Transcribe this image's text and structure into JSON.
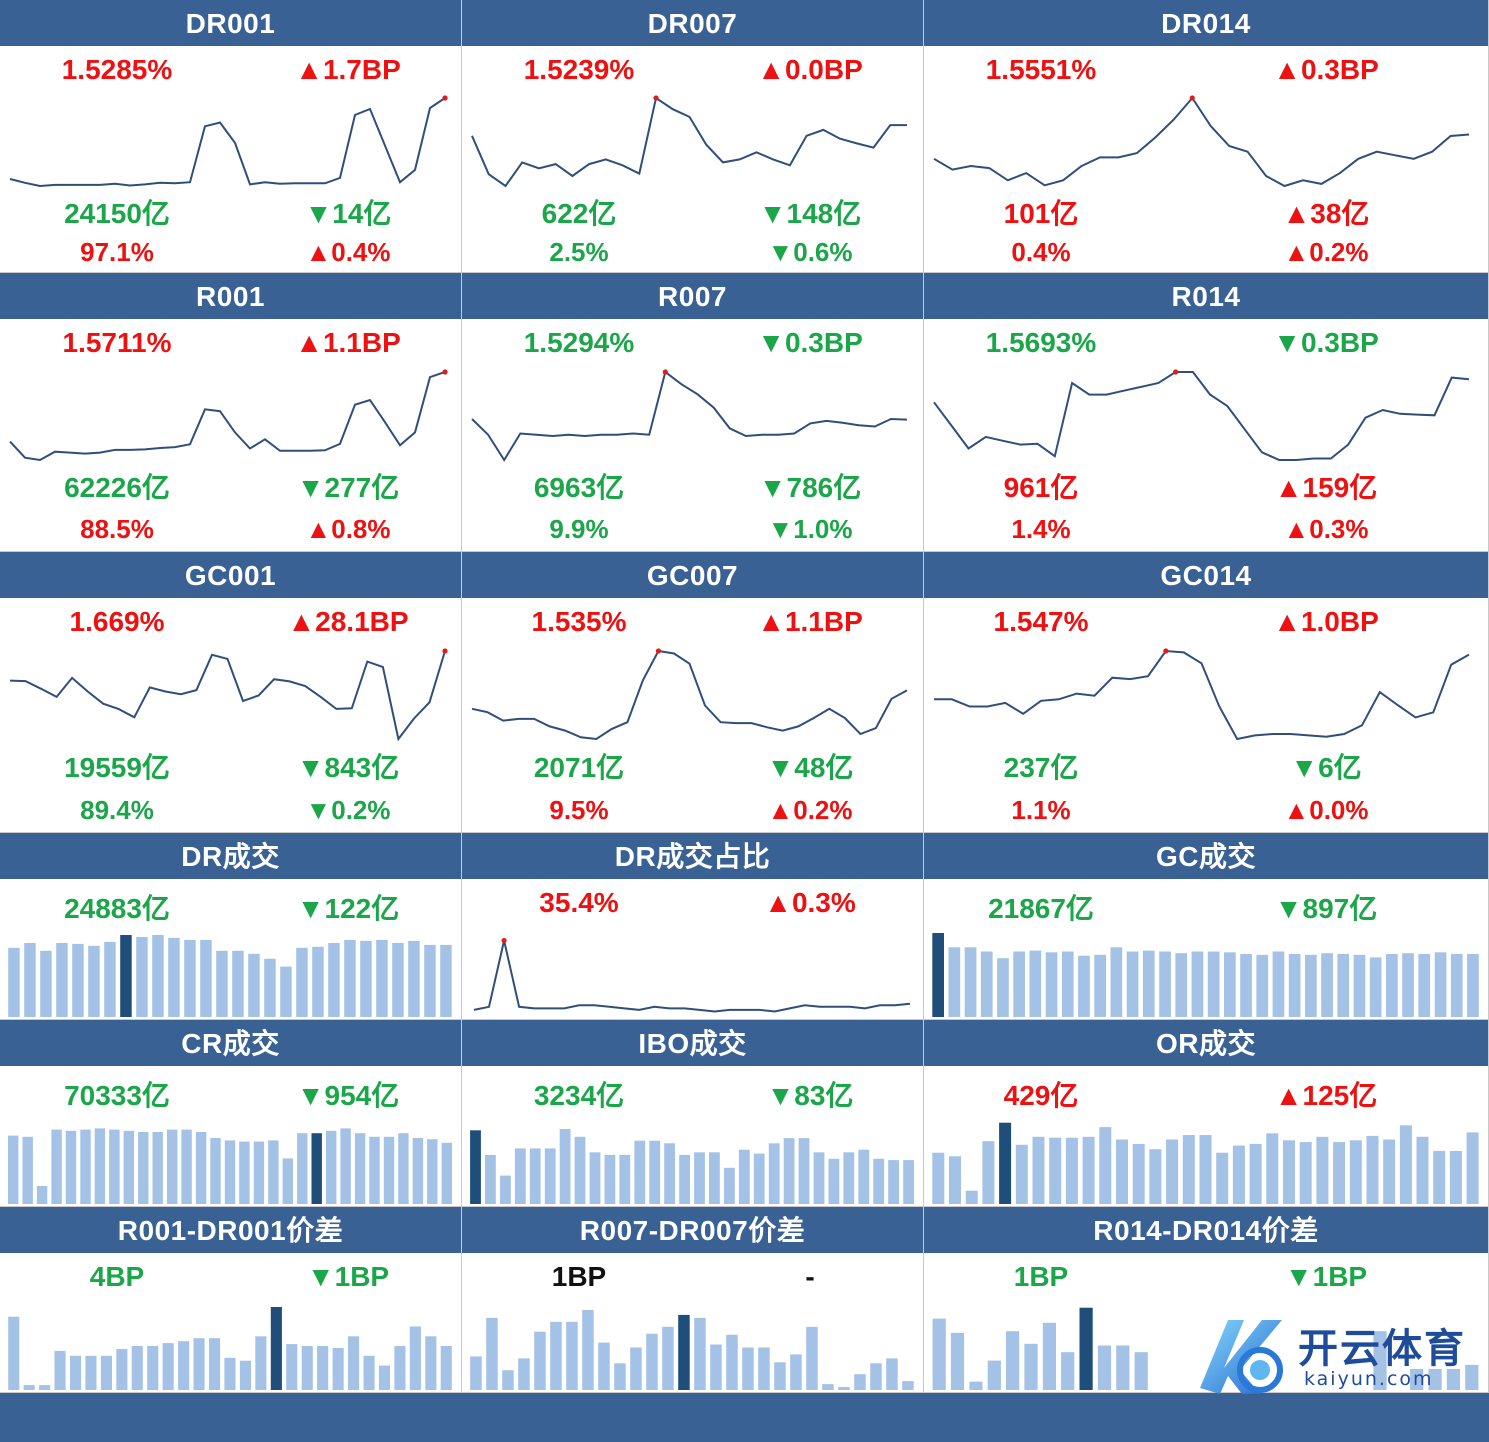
{
  "colors": {
    "header_bg": "#3a6194",
    "up": "#ee1111",
    "down": "#1ca64a",
    "line": "#2f4f7a",
    "bar": "#a4c2e6",
    "bar_highlight": "#1f4e7a"
  },
  "watermark": {
    "brand_cn": "开云体育",
    "url": "kaiyun.com"
  },
  "chart_data": [
    {
      "id": "DR001",
      "type": "line",
      "title": "DR001",
      "rate": {
        "text": "1.5285%",
        "dir": "up"
      },
      "rate_chg": {
        "text": "▲1.7BP",
        "dir": "up"
      },
      "vol": {
        "text": "24150亿",
        "dir": "down"
      },
      "vol_chg": {
        "text": "▼14亿",
        "dir": "down"
      },
      "share": {
        "text": "97.1%",
        "dir": "up"
      },
      "share_chg": {
        "text": "▲0.4%",
        "dir": "up"
      },
      "values": [
        1.378,
        1.371,
        1.365,
        1.367,
        1.367,
        1.367,
        1.367,
        1.369,
        1.366,
        1.368,
        1.371,
        1.37,
        1.372,
        1.476,
        1.483,
        1.445,
        1.368,
        1.372,
        1.369,
        1.37,
        1.37,
        1.37,
        1.38,
        1.497,
        1.508,
        1.44,
        1.372,
        1.395,
        1.51,
        1.5285
      ]
    },
    {
      "id": "DR007",
      "type": "line",
      "title": "DR007",
      "rate": {
        "text": "1.5239%",
        "dir": "up"
      },
      "rate_chg": {
        "text": "▲0.0BP",
        "dir": "up"
      },
      "vol": {
        "text": "622亿",
        "dir": "down"
      },
      "vol_chg": {
        "text": "▼148亿",
        "dir": "down"
      },
      "share": {
        "text": "2.5%",
        "dir": "down"
      },
      "share_chg": {
        "text": "▼0.6%",
        "dir": "down"
      },
      "values": [
        1.46,
        1.395,
        1.375,
        1.415,
        1.405,
        1.412,
        1.392,
        1.412,
        1.42,
        1.41,
        1.396,
        1.5239,
        1.505,
        1.492,
        1.445,
        1.415,
        1.42,
        1.432,
        1.42,
        1.41,
        1.46,
        1.47,
        1.455,
        1.447,
        1.44,
        1.478,
        1.478
      ]
    },
    {
      "id": "DR014",
      "type": "line",
      "title": "DR014",
      "rate": {
        "text": "1.5551%",
        "dir": "up"
      },
      "rate_chg": {
        "text": "▲0.3BP",
        "dir": "up"
      },
      "vol": {
        "text": "101亿",
        "dir": "up"
      },
      "vol_chg": {
        "text": "▲38亿",
        "dir": "up"
      },
      "share": {
        "text": "0.4%",
        "dir": "up"
      },
      "share_chg": {
        "text": "▲0.2%",
        "dir": "up"
      },
      "values": [
        1.47,
        1.455,
        1.46,
        1.457,
        1.44,
        1.45,
        1.433,
        1.44,
        1.46,
        1.472,
        1.472,
        1.478,
        1.5,
        1.525,
        1.5551,
        1.516,
        1.488,
        1.48,
        1.446,
        1.432,
        1.44,
        1.435,
        1.45,
        1.47,
        1.48,
        1.475,
        1.47,
        1.48,
        1.502,
        1.504
      ]
    },
    {
      "id": "R001",
      "type": "line",
      "title": "R001",
      "rate": {
        "text": "1.5711%",
        "dir": "up"
      },
      "rate_chg": {
        "text": "▲1.1BP",
        "dir": "up"
      },
      "vol": {
        "text": "62226亿",
        "dir": "down"
      },
      "vol_chg": {
        "text": "▼277亿",
        "dir": "down"
      },
      "share": {
        "text": "88.5%",
        "dir": "up"
      },
      "share_chg": {
        "text": "▲0.8%",
        "dir": "up"
      },
      "values": [
        1.42,
        1.385,
        1.38,
        1.398,
        1.396,
        1.394,
        1.396,
        1.402,
        1.402,
        1.403,
        1.406,
        1.408,
        1.414,
        1.49,
        1.486,
        1.44,
        1.405,
        1.425,
        1.4,
        1.4,
        1.4,
        1.401,
        1.415,
        1.5,
        1.51,
        1.462,
        1.412,
        1.44,
        1.56,
        1.5711
      ]
    },
    {
      "id": "R007",
      "type": "line",
      "title": "R007",
      "rate": {
        "text": "1.5294%",
        "dir": "down"
      },
      "rate_chg": {
        "text": "▼0.3BP",
        "dir": "down"
      },
      "vol": {
        "text": "6963亿",
        "dir": "down"
      },
      "vol_chg": {
        "text": "▼786亿",
        "dir": "down"
      },
      "share": {
        "text": "9.9%",
        "dir": "down"
      },
      "share_chg": {
        "text": "▼1.0%",
        "dir": "down"
      },
      "values": [
        1.455,
        1.43,
        1.39,
        1.432,
        1.43,
        1.428,
        1.43,
        1.428,
        1.43,
        1.43,
        1.432,
        1.43,
        1.5294,
        1.51,
        1.494,
        1.473,
        1.44,
        1.428,
        1.43,
        1.43,
        1.432,
        1.448,
        1.452,
        1.449,
        1.445,
        1.443,
        1.455,
        1.454
      ]
    },
    {
      "id": "R014",
      "type": "line",
      "title": "R014",
      "rate": {
        "text": "1.5693%",
        "dir": "down"
      },
      "rate_chg": {
        "text": "▼0.3BP",
        "dir": "down"
      },
      "vol": {
        "text": "961亿",
        "dir": "up"
      },
      "vol_chg": {
        "text": "▲159亿",
        "dir": "up"
      },
      "share": {
        "text": "1.4%",
        "dir": "up"
      },
      "share_chg": {
        "text": "▲0.3%",
        "dir": "up"
      },
      "values": [
        1.53,
        1.5,
        1.47,
        1.485,
        1.48,
        1.475,
        1.476,
        1.46,
        1.555,
        1.54,
        1.54,
        1.545,
        1.55,
        1.555,
        1.5693,
        1.5693,
        1.54,
        1.525,
        1.495,
        1.465,
        1.455,
        1.455,
        1.457,
        1.457,
        1.475,
        1.51,
        1.52,
        1.515,
        1.514,
        1.513,
        1.562,
        1.56
      ]
    },
    {
      "id": "GC001",
      "type": "line",
      "title": "GC001",
      "rate": {
        "text": "1.669%",
        "dir": "up"
      },
      "rate_chg": {
        "text": "▲28.1BP",
        "dir": "up"
      },
      "vol": {
        "text": "19559亿",
        "dir": "down"
      },
      "vol_chg": {
        "text": "▼843亿",
        "dir": "down"
      },
      "share": {
        "text": "89.4%",
        "dir": "down"
      },
      "share_chg": {
        "text": "▼0.2%",
        "dir": "down"
      },
      "values": [
        1.56,
        1.558,
        1.53,
        1.5,
        1.57,
        1.52,
        1.475,
        1.455,
        1.425,
        1.535,
        1.52,
        1.51,
        1.525,
        1.655,
        1.64,
        1.485,
        1.505,
        1.565,
        1.557,
        1.54,
        1.5,
        1.456,
        1.458,
        1.63,
        1.61,
        1.345,
        1.42,
        1.48,
        1.669
      ]
    },
    {
      "id": "GC007",
      "type": "line",
      "title": "GC007",
      "rate": {
        "text": "1.535%",
        "dir": "up"
      },
      "rate_chg": {
        "text": "▲1.1BP",
        "dir": "up"
      },
      "vol": {
        "text": "2071亿",
        "dir": "down"
      },
      "vol_chg": {
        "text": "▼48亿",
        "dir": "down"
      },
      "share": {
        "text": "9.5%",
        "dir": "up"
      },
      "share_chg": {
        "text": "▲0.2%",
        "dir": "up"
      },
      "values": [
        1.466,
        1.462,
        1.452,
        1.454,
        1.454,
        1.445,
        1.44,
        1.432,
        1.43,
        1.442,
        1.45,
        1.5,
        1.535,
        1.532,
        1.52,
        1.47,
        1.45,
        1.449,
        1.449,
        1.444,
        1.44,
        1.445,
        1.455,
        1.466,
        1.455,
        1.436,
        1.443,
        1.478,
        1.488
      ]
    },
    {
      "id": "GC014",
      "type": "line",
      "title": "GC014",
      "rate": {
        "text": "1.547%",
        "dir": "up"
      },
      "rate_chg": {
        "text": "▲1.0BP",
        "dir": "up"
      },
      "vol": {
        "text": "237亿",
        "dir": "down"
      },
      "vol_chg": {
        "text": "▼6亿",
        "dir": "down"
      },
      "share": {
        "text": "1.1%",
        "dir": "up"
      },
      "share_chg": {
        "text": "▲0.0%",
        "dir": "up"
      },
      "values": [
        1.48,
        1.48,
        1.47,
        1.47,
        1.475,
        1.46,
        1.478,
        1.48,
        1.488,
        1.485,
        1.51,
        1.508,
        1.512,
        1.547,
        1.545,
        1.53,
        1.47,
        1.425,
        1.43,
        1.432,
        1.432,
        1.43,
        1.428,
        1.432,
        1.444,
        1.49,
        1.472,
        1.455,
        1.462,
        1.528,
        1.542
      ]
    },
    {
      "id": "DR_VOL",
      "type": "bar",
      "title": "DR成交",
      "rate": {
        "text": "24883亿",
        "dir": "down"
      },
      "rate_chg": {
        "text": "▼122亿",
        "dir": "down"
      },
      "values": [
        70,
        75,
        67,
        75,
        74,
        72,
        76,
        83,
        81,
        83,
        80,
        78,
        78,
        67,
        67,
        64,
        59,
        51,
        70,
        71,
        75,
        78,
        77,
        78,
        75,
        77,
        73,
        73
      ],
      "highlight": 7,
      "ylim": [
        0,
        85
      ]
    },
    {
      "id": "DR_SHARE",
      "type": "line",
      "title": "DR成交占比",
      "rate": {
        "text": "35.4%",
        "dir": "up"
      },
      "rate_chg": {
        "text": "▲0.3%",
        "dir": "up"
      },
      "values": [
        35.0,
        35.2,
        39.5,
        35.2,
        35.1,
        35.1,
        35.1,
        35.3,
        35.3,
        35.2,
        35.1,
        35.0,
        35.2,
        35.1,
        35.1,
        35.0,
        34.9,
        35.0,
        35.0,
        35.0,
        34.9,
        35.1,
        35.3,
        35.2,
        35.2,
        35.2,
        35.1,
        35.3,
        35.3,
        35.4
      ],
      "ylim": [
        34.8,
        39.6
      ]
    },
    {
      "id": "GC_VOL",
      "type": "bar",
      "title": "GC成交",
      "rate": {
        "text": "21867亿",
        "dir": "down"
      },
      "rate_chg": {
        "text": "▼897亿",
        "dir": "down"
      },
      "values": [
        100,
        83,
        83,
        78,
        70,
        78,
        79,
        77,
        78,
        73,
        74,
        83,
        78,
        79,
        78,
        76,
        78,
        78,
        77,
        75,
        74,
        78,
        75,
        74,
        76,
        75,
        74,
        71,
        75,
        76,
        75,
        77,
        75,
        75
      ],
      "highlight": 0,
      "ylim": [
        0,
        100
      ]
    },
    {
      "id": "CR_VOL",
      "type": "bar",
      "title": "CR成交",
      "rate": {
        "text": "70333亿",
        "dir": "down"
      },
      "rate_chg": {
        "text": "▼954亿",
        "dir": "down"
      },
      "values": [
        77,
        76,
        35,
        82,
        81,
        82,
        83,
        82,
        81,
        80,
        80,
        82,
        82,
        80,
        75,
        73,
        72,
        72,
        73,
        58,
        79,
        79,
        81,
        83,
        79,
        76,
        76,
        79,
        75,
        74,
        71
      ],
      "highlight": 21,
      "ylim": [
        20,
        90
      ]
    },
    {
      "id": "IBO_VOL",
      "type": "bar",
      "title": "IBO成交",
      "rate": {
        "text": "3234亿",
        "dir": "down"
      },
      "rate_chg": {
        "text": "▼83亿",
        "dir": "down"
      },
      "values": [
        87,
        68,
        52,
        73,
        73,
        73,
        88,
        82,
        70,
        68,
        68,
        79,
        79,
        77,
        68,
        70,
        70,
        58,
        72,
        69,
        77,
        81,
        81,
        70,
        65,
        70,
        72,
        65,
        64,
        64
      ],
      "highlight": 0,
      "ylim": [
        30,
        95
      ]
    },
    {
      "id": "OR_VOL",
      "type": "bar",
      "title": "OR成交",
      "rate": {
        "text": "429亿",
        "dir": "up"
      },
      "rate_chg": {
        "text": "▲125亿",
        "dir": "up"
      },
      "values": [
        58,
        54,
        15,
        71,
        92,
        67,
        76,
        75,
        75,
        76,
        87,
        73,
        68,
        62,
        73,
        78,
        78,
        58,
        66,
        68,
        80,
        72,
        70,
        76,
        70,
        72,
        77,
        73,
        89,
        76,
        60,
        60,
        81
      ],
      "highlight": 4,
      "ylim": [
        0,
        95
      ]
    },
    {
      "id": "R001_DR001",
      "type": "bar",
      "title": "R001-DR001价差",
      "rate": {
        "text": "4BP",
        "dir": "down"
      },
      "rate_chg": {
        "text": "▼1BP",
        "dir": "down"
      },
      "values": [
        7.5,
        0.5,
        0.5,
        4.0,
        3.5,
        3.5,
        3.5,
        4.2,
        4.5,
        4.5,
        4.8,
        5.0,
        5.3,
        5.3,
        3.3,
        3.0,
        5.5,
        8.5,
        4.7,
        4.5,
        4.5,
        4.3,
        5.5,
        3.5,
        2.5,
        4.5,
        6.5,
        5.5,
        4.5
      ],
      "highlight": 17,
      "ylim": [
        0,
        8.6
      ]
    },
    {
      "id": "R007_DR007",
      "type": "bar",
      "title": "R007-DR007价差",
      "rate": {
        "text": "1BP",
        "dir": "neutral"
      },
      "rate_chg": {
        "text": "-",
        "dir": "neutral"
      },
      "values": [
        3.4,
        7.3,
        2.0,
        3.2,
        5.9,
        6.9,
        6.9,
        8.1,
        4.8,
        2.7,
        4.3,
        5.7,
        6.4,
        7.6,
        7.3,
        4.6,
        5.6,
        4.3,
        4.3,
        2.8,
        3.6,
        6.4,
        0.6,
        0.3,
        1.6,
        2.7,
        3.2,
        0.9
      ],
      "highlight": 13,
      "ylim": [
        0,
        8.5
      ]
    },
    {
      "id": "R014_DR014",
      "type": "bar",
      "title": "R014-DR014价差",
      "rate": {
        "text": "1BP",
        "dir": "down"
      },
      "rate_chg": {
        "text": "▼1BP",
        "dir": "down"
      },
      "values": [
        8.5,
        6.8,
        1.0,
        3.5,
        7.0,
        5.5,
        8.0,
        4.5,
        9.8,
        5.3,
        5.3,
        4.5,
        0,
        0,
        0,
        0,
        0,
        0,
        0,
        0,
        0,
        0,
        0,
        0,
        7.0,
        0,
        2.5,
        2.5,
        2.5,
        3.0
      ],
      "highlight": 8,
      "ylim": [
        0,
        10
      ]
    }
  ]
}
